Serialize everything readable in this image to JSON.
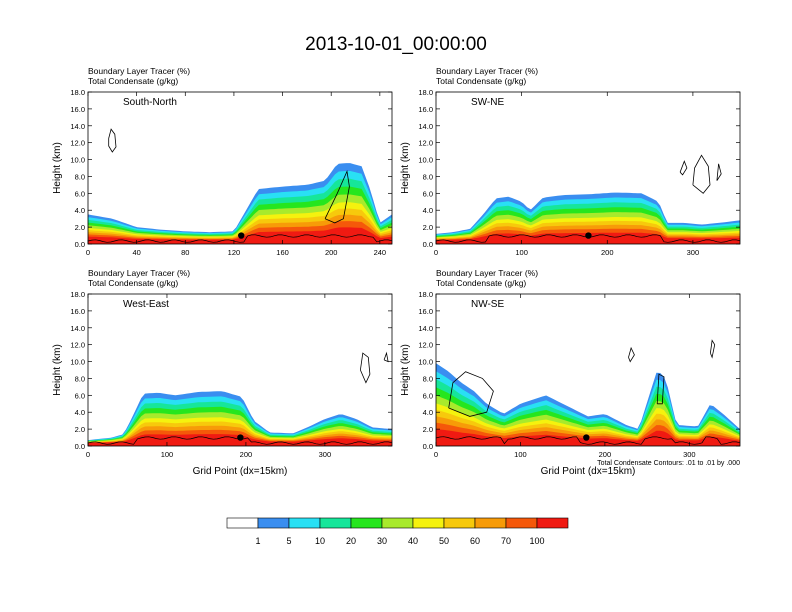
{
  "page": {
    "title": "2013-10-01_00:00:00"
  },
  "chart_data": [
    {
      "type": "heatmap",
      "panel_label": "South-North",
      "title_lines": [
        "Boundary Layer Tracer   (%)",
        "Total Condensate   (g/kg)"
      ],
      "ylabel": "Height (km)",
      "xlabel": "",
      "xlim": [
        0,
        250
      ],
      "ylim": [
        0,
        18
      ],
      "x_ticks": [
        "0",
        "40",
        "80",
        "120",
        "160",
        "200",
        "240"
      ],
      "y_ticks": [
        "0.0",
        "2.0",
        "4.0",
        "6.0",
        "8.0",
        "10.0",
        "12.0",
        "14.0",
        "16.0",
        "18.0"
      ],
      "top_profile": [
        [
          0,
          3.5
        ],
        [
          20,
          3.0
        ],
        [
          40,
          2.0
        ],
        [
          60,
          1.7
        ],
        [
          80,
          1.5
        ],
        [
          100,
          1.4
        ],
        [
          120,
          1.5
        ],
        [
          128,
          3.5
        ],
        [
          140,
          6.5
        ],
        [
          160,
          6.8
        ],
        [
          180,
          7.0
        ],
        [
          195,
          7.5
        ],
        [
          205,
          9.5
        ],
        [
          215,
          9.6
        ],
        [
          225,
          9.2
        ],
        [
          232,
          6.5
        ],
        [
          240,
          2.5
        ],
        [
          250,
          3.5
        ]
      ],
      "ground_marker": {
        "x": 126,
        "y": 1.0
      },
      "condensate_contours": [
        [
          [
            17,
            12.5
          ],
          [
            19,
            13.6
          ],
          [
            22,
            13.0
          ],
          [
            23,
            11.5
          ],
          [
            20,
            10.9
          ],
          [
            17,
            11.6
          ],
          [
            17,
            12.5
          ]
        ],
        [
          [
            195,
            3.0
          ],
          [
            205,
            6.0
          ],
          [
            213,
            8.6
          ],
          [
            215,
            6.8
          ],
          [
            210,
            3.0
          ],
          [
            203,
            2.5
          ],
          [
            195,
            3.0
          ]
        ]
      ]
    },
    {
      "type": "heatmap",
      "panel_label": "SW-NE",
      "title_lines": [
        "Boundary Layer Tracer   (%)",
        "Total Condensate   (g/kg)"
      ],
      "ylabel": "Height (km)",
      "xlabel": "",
      "xlim": [
        0,
        355
      ],
      "ylim": [
        0,
        18
      ],
      "x_ticks": [
        "0",
        "100",
        "200",
        "300"
      ],
      "y_ticks": [
        "0.0",
        "2.0",
        "4.0",
        "6.0",
        "8.0",
        "10.0",
        "12.0",
        "14.0",
        "16.0",
        "18.0"
      ],
      "top_profile": [
        [
          0,
          1.2
        ],
        [
          20,
          1.4
        ],
        [
          40,
          1.8
        ],
        [
          55,
          3.5
        ],
        [
          70,
          5.4
        ],
        [
          85,
          5.6
        ],
        [
          100,
          5.0
        ],
        [
          110,
          4.0
        ],
        [
          125,
          5.5
        ],
        [
          150,
          5.8
        ],
        [
          180,
          5.9
        ],
        [
          210,
          6.1
        ],
        [
          240,
          6.0
        ],
        [
          260,
          5.0
        ],
        [
          270,
          2.5
        ],
        [
          290,
          2.5
        ],
        [
          310,
          2.3
        ],
        [
          330,
          2.5
        ],
        [
          355,
          2.8
        ]
      ],
      "ground_marker": {
        "x": 178,
        "y": 1.0
      },
      "condensate_contours": [
        [
          [
            300,
            7.0
          ],
          [
            302,
            9.0
          ],
          [
            310,
            10.5
          ],
          [
            318,
            9.2
          ],
          [
            320,
            7.0
          ],
          [
            312,
            6.0
          ],
          [
            300,
            7.0
          ]
        ],
        [
          [
            285,
            8.5
          ],
          [
            290,
            9.8
          ],
          [
            293,
            9.0
          ],
          [
            288,
            8.2
          ],
          [
            285,
            8.5
          ]
        ],
        [
          [
            328,
            7.5
          ],
          [
            330,
            9.5
          ],
          [
            333,
            8.3
          ],
          [
            328,
            7.5
          ]
        ]
      ]
    },
    {
      "type": "heatmap",
      "panel_label": "West-East",
      "title_lines": [
        "Boundary Layer Tracer   (%)",
        "Total Condensate   (g/kg)"
      ],
      "ylabel": "Height (km)",
      "xlabel": "Grid Point (dx=15km)",
      "xlim": [
        0,
        385
      ],
      "ylim": [
        0,
        18
      ],
      "x_ticks": [
        "0",
        "100",
        "200",
        "300"
      ],
      "y_ticks": [
        "0.0",
        "2.0",
        "4.0",
        "6.0",
        "8.0",
        "10.0",
        "12.0",
        "14.0",
        "16.0",
        "18.0"
      ],
      "top_profile": [
        [
          0,
          0.7
        ],
        [
          30,
          1.0
        ],
        [
          45,
          1.4
        ],
        [
          55,
          3.2
        ],
        [
          70,
          6.2
        ],
        [
          90,
          6.3
        ],
        [
          110,
          6.0
        ],
        [
          140,
          6.4
        ],
        [
          170,
          6.5
        ],
        [
          195,
          5.8
        ],
        [
          210,
          3.0
        ],
        [
          230,
          1.6
        ],
        [
          260,
          1.5
        ],
        [
          280,
          2.3
        ],
        [
          300,
          3.2
        ],
        [
          320,
          3.8
        ],
        [
          340,
          3.2
        ],
        [
          360,
          2.2
        ],
        [
          385,
          2.0
        ]
      ],
      "ground_marker": {
        "x": 193,
        "y": 1.0
      },
      "condensate_contours": [
        [
          [
            345,
            9.0
          ],
          [
            348,
            11.0
          ],
          [
            355,
            10.5
          ],
          [
            357,
            8.5
          ],
          [
            352,
            7.5
          ],
          [
            345,
            9.0
          ]
        ],
        [
          [
            375,
            10.2
          ],
          [
            378,
            11.0
          ],
          [
            380,
            10.0
          ],
          [
            375,
            10.2
          ]
        ]
      ]
    },
    {
      "type": "heatmap",
      "panel_label": "NW-SE",
      "title_lines": [
        "Boundary Layer Tracer   (%)",
        "Total Condensate   (g/kg)"
      ],
      "ylabel": "Height (km)",
      "xlabel": "Grid Point (dx=15km)",
      "xlim": [
        0,
        360
      ],
      "ylim": [
        0,
        18
      ],
      "x_ticks": [
        "0",
        "100",
        "200",
        "300"
      ],
      "y_ticks": [
        "0.0",
        "2.0",
        "4.0",
        "6.0",
        "8.0",
        "10.0",
        "12.0",
        "14.0",
        "16.0",
        "18.0"
      ],
      "top_profile": [
        [
          0,
          9.8
        ],
        [
          15,
          8.8
        ],
        [
          30,
          7.5
        ],
        [
          45,
          6.5
        ],
        [
          60,
          5.0
        ],
        [
          80,
          3.8
        ],
        [
          100,
          5.0
        ],
        [
          130,
          6.0
        ],
        [
          160,
          4.5
        ],
        [
          180,
          3.5
        ],
        [
          200,
          3.8
        ],
        [
          225,
          2.5
        ],
        [
          240,
          2.0
        ],
        [
          262,
          9.0
        ],
        [
          272,
          8.0
        ],
        [
          285,
          2.5
        ],
        [
          310,
          2.3
        ],
        [
          325,
          5.0
        ],
        [
          340,
          3.8
        ],
        [
          360,
          2.0
        ]
      ],
      "ground_marker": {
        "x": 178,
        "y": 1.0
      },
      "condensate_contours": [
        [
          [
            15,
            4.5
          ],
          [
            20,
            7.5
          ],
          [
            35,
            8.8
          ],
          [
            55,
            8.0
          ],
          [
            68,
            6.5
          ],
          [
            60,
            4.0
          ],
          [
            40,
            3.5
          ],
          [
            15,
            4.5
          ]
        ],
        [
          [
            262,
            5.0
          ],
          [
            264,
            8.5
          ],
          [
            270,
            8.2
          ],
          [
            268,
            5.0
          ],
          [
            262,
            5.0
          ]
        ],
        [
          [
            228,
            10.5
          ],
          [
            231,
            11.6
          ],
          [
            235,
            10.8
          ],
          [
            230,
            10.0
          ],
          [
            228,
            10.5
          ]
        ],
        [
          [
            325,
            11.0
          ],
          [
            327,
            12.5
          ],
          [
            330,
            12.0
          ],
          [
            327,
            10.5
          ],
          [
            325,
            11.0
          ]
        ]
      ],
      "contour_note": "Total Condensate Contours: .01 to .01 by .000"
    }
  ],
  "colorbar": {
    "labels": [
      "1",
      "5",
      "10",
      "20",
      "30",
      "40",
      "50",
      "60",
      "70",
      "100"
    ],
    "colors": [
      "#ffffff",
      "#3a8ef0",
      "#29e0f4",
      "#16e69a",
      "#26e61e",
      "#a8ea2c",
      "#f5f20e",
      "#f7c90c",
      "#f79b08",
      "#f5580a",
      "#f01a12"
    ]
  }
}
